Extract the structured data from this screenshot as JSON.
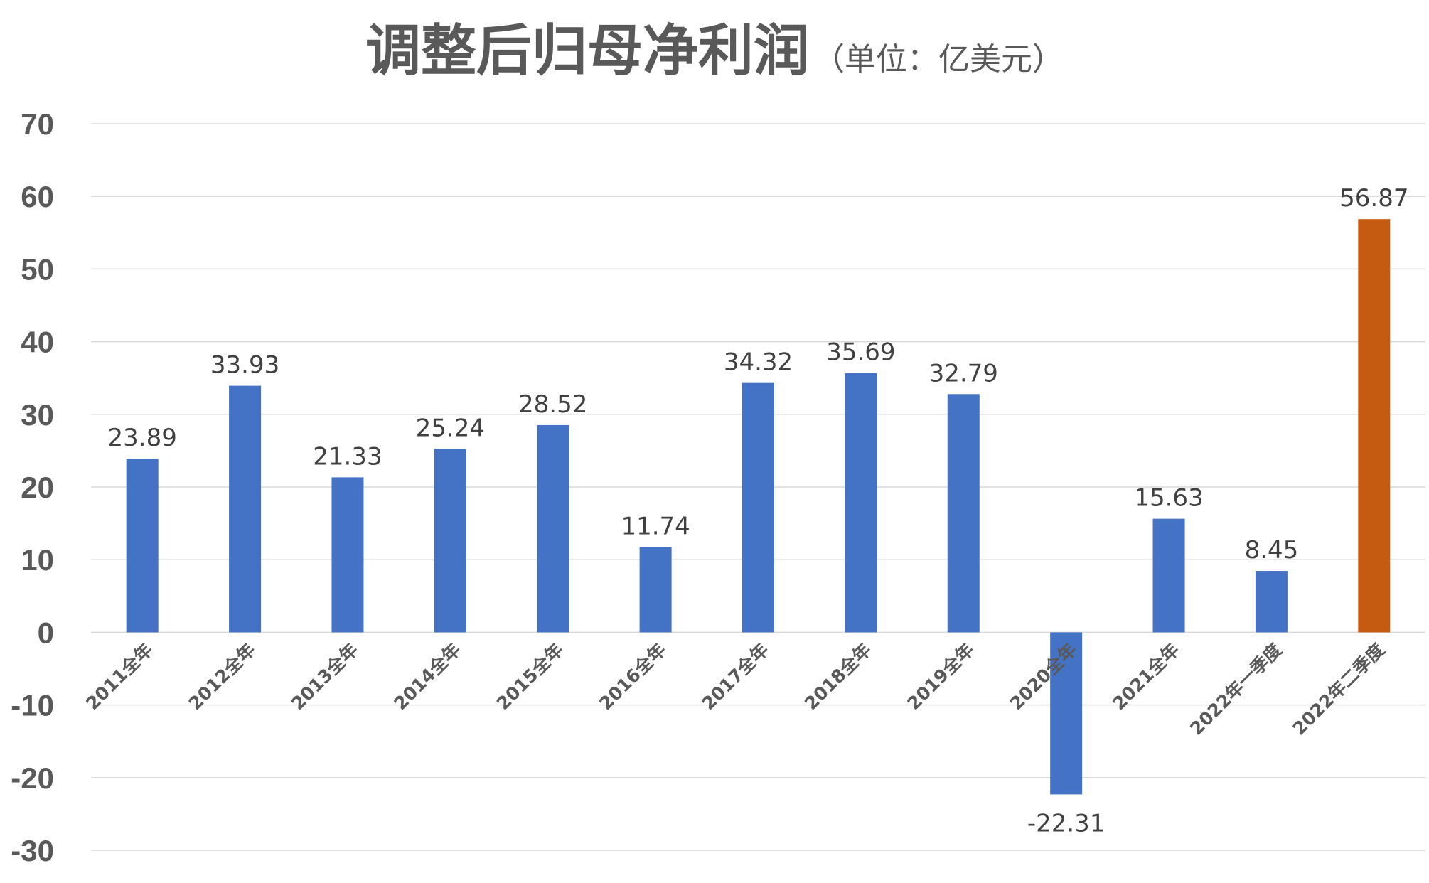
{
  "chart_data": {
    "type": "bar",
    "title": "调整后归母净利润",
    "subtitle": "（单位：亿美元）",
    "xlabel": "",
    "ylabel": "",
    "categories": [
      "2011全年",
      "2012全年",
      "2013全年",
      "2014全年",
      "2015全年",
      "2016全年",
      "2017全年",
      "2018全年",
      "2019全年",
      "2020全年",
      "2021全年",
      "2022年一季度",
      "2022年二季度"
    ],
    "values": [
      23.89,
      33.93,
      21.33,
      25.24,
      28.52,
      11.74,
      34.32,
      35.69,
      32.79,
      -22.31,
      15.63,
      8.45,
      56.87
    ],
    "value_labels": [
      "23.89",
      "33.93",
      "21.33",
      "25.24",
      "28.52",
      "11.74",
      "34.32",
      "35.69",
      "32.79",
      "-22.31",
      "15.63",
      "8.45",
      "56.87"
    ],
    "highlight_index": 12,
    "colors": {
      "default": "#4472c4",
      "highlight": "#c55a11"
    },
    "ylim": [
      -30,
      70
    ],
    "yticks": [
      70,
      60,
      50,
      40,
      30,
      20,
      10,
      0,
      -10,
      -20,
      -30
    ],
    "ytick_labels": [
      "70",
      "60",
      "50",
      "40",
      "30",
      "20",
      "10",
      "0",
      "-10",
      "-20",
      "-30"
    ],
    "grid": true,
    "legend": "none"
  }
}
